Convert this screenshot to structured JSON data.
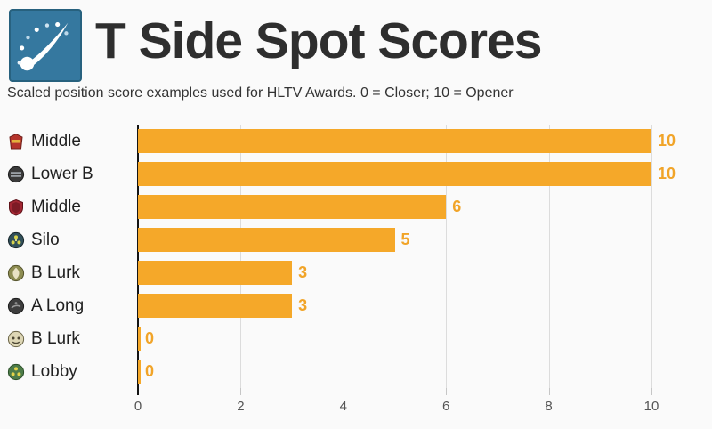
{
  "page": {
    "background": "#fafafa"
  },
  "header": {
    "logo": "comet-logo",
    "logo_bg_color": "#35789f",
    "title": "T Side Spot Scores",
    "subtitle": "Scaled position score examples used for HLTV Awards. 0 = Closer; 10 = Opener"
  },
  "chart_data": {
    "type": "bar",
    "orientation": "horizontal",
    "title": "T Side Spot Scores",
    "subtitle": "Scaled position score examples used for HLTV Awards. 0 = Closer; 10 = Opener",
    "categories": [
      "Middle",
      "Lower B",
      "Middle",
      "Silo",
      "B Lurk",
      "A Long",
      "B Lurk",
      "Lobby"
    ],
    "category_icons": [
      "mirage-crest-icon",
      "train-badge-icon",
      "cache-shield-icon",
      "nuke-radiation-icon",
      "inferno-flame-icon",
      "dark-badge-icon",
      "dust2-badge-icon",
      "nuke-green-icon"
    ],
    "values": [
      10,
      10,
      6,
      5,
      3,
      3,
      0,
      0
    ],
    "x_ticks": [
      0,
      2,
      4,
      6,
      8,
      10
    ],
    "xlim": [
      0,
      10
    ],
    "bar_color": "#f5a829",
    "value_label_color": "#f1a428",
    "grid": true,
    "gridline_color": "#dcdcdc",
    "axis_color": "#141414"
  }
}
